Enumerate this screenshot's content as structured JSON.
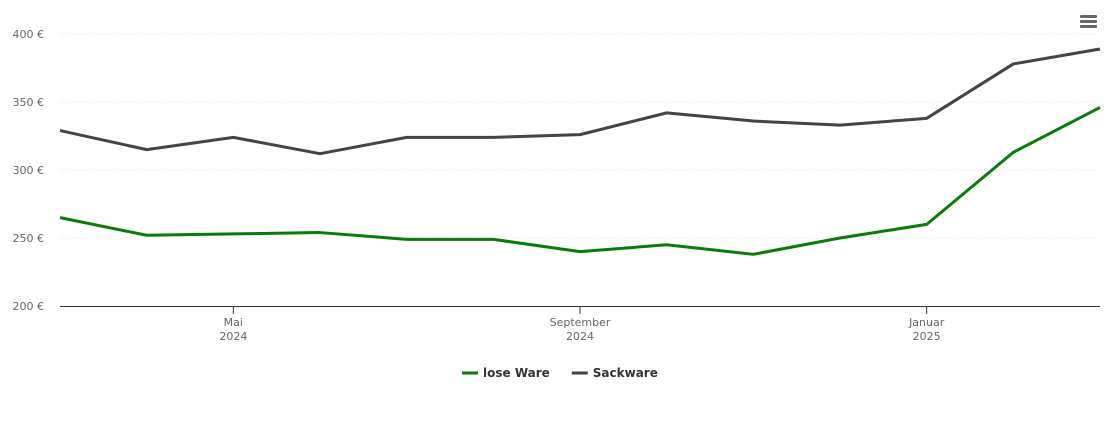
{
  "chart_data": {
    "type": "line",
    "x": [
      "2024-03",
      "2024-04",
      "2024-05",
      "2024-06",
      "2024-07",
      "2024-08",
      "2024-09",
      "2024-10",
      "2024-11",
      "2024-12",
      "2025-01",
      "2025-02",
      "2025-03"
    ],
    "xlim": [
      "2024-03",
      "2025-03"
    ],
    "xticks": [
      {
        "value": "2024-05",
        "label": [
          "Mai",
          "2024"
        ]
      },
      {
        "value": "2024-09",
        "label": [
          "September",
          "2024"
        ]
      },
      {
        "value": "2025-01",
        "label": [
          "Januar",
          "2025"
        ]
      }
    ],
    "ylim": [
      200,
      400
    ],
    "yticks": [
      {
        "value": 200,
        "label": "200 €"
      },
      {
        "value": 250,
        "label": "250 €"
      },
      {
        "value": 300,
        "label": "300 €"
      },
      {
        "value": 350,
        "label": "350 €"
      },
      {
        "value": 400,
        "label": "400 €"
      }
    ],
    "grid": true,
    "legend": "bottom",
    "series": [
      {
        "name": "lose Ware",
        "color": "#0a7a0a",
        "values": [
          265,
          252,
          253,
          254,
          249,
          249,
          240,
          245,
          238,
          250,
          260,
          313,
          346
        ]
      },
      {
        "name": "Sackware",
        "color": "#434348",
        "values": [
          329,
          315,
          324,
          312,
          324,
          324,
          326,
          342,
          336,
          333,
          338,
          378,
          389
        ]
      }
    ]
  }
}
